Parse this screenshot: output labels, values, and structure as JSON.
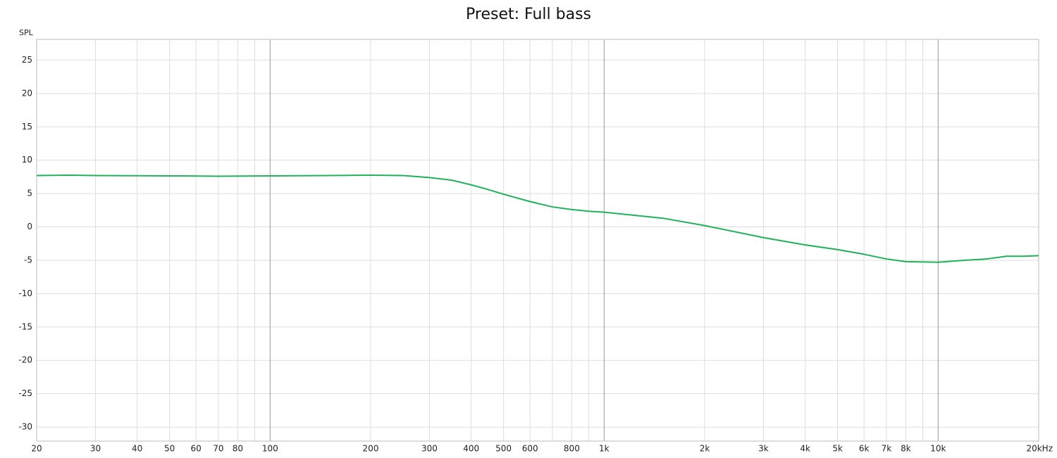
{
  "chart_data": {
    "type": "line",
    "title": "Preset: Full bass",
    "y_label": "SPL",
    "log_x": true,
    "grid": true,
    "color": "#1fb25a",
    "x": [
      20,
      25,
      30,
      50,
      70,
      100,
      150,
      200,
      250,
      300,
      350,
      400,
      450,
      500,
      600,
      700,
      800,
      900,
      1000,
      1500,
      2000,
      3000,
      4000,
      5000,
      6000,
      7000,
      8000,
      10000,
      12000,
      14000,
      16000,
      18000,
      20000
    ],
    "values": [
      7.7,
      7.75,
      7.7,
      7.65,
      7.6,
      7.65,
      7.7,
      7.75,
      7.7,
      7.4,
      7.0,
      6.3,
      5.6,
      4.9,
      3.8,
      3.0,
      2.6,
      2.35,
      2.2,
      1.3,
      0.2,
      -1.6,
      -2.7,
      -3.4,
      -4.1,
      -4.8,
      -5.2,
      -5.3,
      -5.0,
      -4.8,
      -4.4,
      -4.4,
      -4.3
    ],
    "xlim": [
      20,
      20000
    ],
    "ylim": [
      -32.1,
      28.1
    ],
    "xticks": [
      20,
      30,
      40,
      50,
      60,
      70,
      80,
      100,
      200,
      300,
      400,
      500,
      600,
      800,
      {
        "value": 1000,
        "label": "1k"
      },
      {
        "value": 2000,
        "label": "2k"
      },
      {
        "value": 3000,
        "label": "3k"
      },
      {
        "value": 4000,
        "label": "4k"
      },
      {
        "value": 5000,
        "label": "5k"
      },
      {
        "value": 6000,
        "label": "6k"
      },
      {
        "value": 7000,
        "label": "7k"
      },
      {
        "value": 8000,
        "label": "8k"
      },
      {
        "value": 10000,
        "label": "10k"
      },
      {
        "value": 20000,
        "label": "20kHz"
      }
    ],
    "xminor": [
      90,
      700,
      900,
      9000
    ],
    "yticks": [
      25,
      20,
      15,
      10,
      5,
      0,
      -5,
      -10,
      -15,
      -20,
      -25,
      -30
    ]
  }
}
